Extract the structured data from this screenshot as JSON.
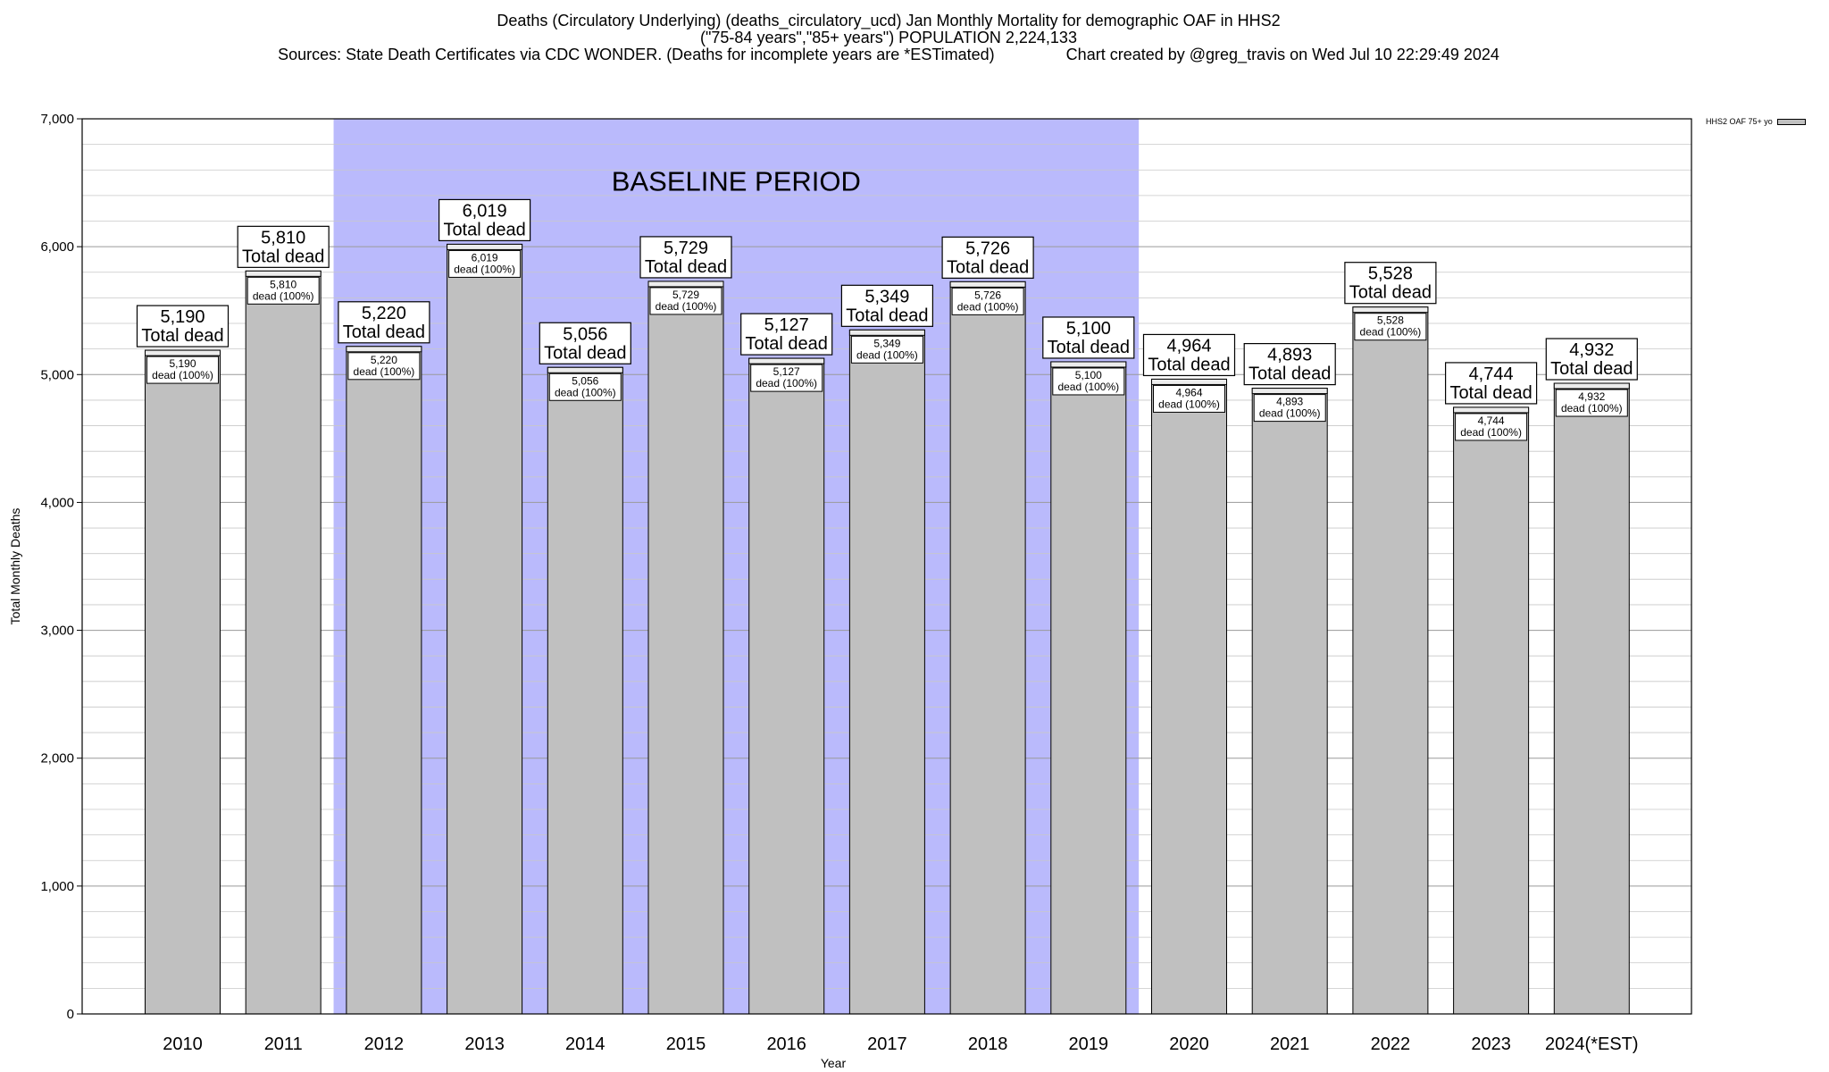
{
  "title_lines": [
    "Deaths (Circulatory Underlying) (deaths_circulatory_ucd) Jan Monthly Mortality for demographic OAF in HHS2",
    "(\"75-84 years\",\"85+ years\") POPULATION 2,224,133",
    "Sources: State Death Certificates via CDC WONDER. (Deaths for incomplete years are *ESTimated)                Chart created by @greg_travis on Wed Jul 10 22:29:49 2024"
  ],
  "chart_data": {
    "type": "bar",
    "categories": [
      "2010",
      "2011",
      "2012",
      "2013",
      "2014",
      "2015",
      "2016",
      "2017",
      "2018",
      "2019",
      "2020",
      "2021",
      "2022",
      "2023",
      "2024(*EST)"
    ],
    "series": [
      {
        "name": "HHS2 OAF 75+ yo",
        "values": [
          5190,
          5810,
          5220,
          6019,
          5056,
          5729,
          5127,
          5349,
          5726,
          5100,
          4964,
          4893,
          5528,
          4744,
          4932
        ]
      }
    ],
    "value_labels": [
      "5,190",
      "5,810",
      "5,220",
      "6,019",
      "5,056",
      "5,729",
      "5,127",
      "5,349",
      "5,726",
      "5,100",
      "4,964",
      "4,893",
      "5,528",
      "4,744",
      "4,932"
    ],
    "outer_label_suffix": "Total dead",
    "inner_label_suffix": "dead (100%)",
    "xlabel": "Year",
    "ylabel": "Total Monthly Deaths",
    "ylim": [
      0,
      7000
    ],
    "yticks": [
      0,
      1000,
      2000,
      3000,
      4000,
      5000,
      6000,
      7000
    ],
    "ytick_labels": [
      "0",
      "1,000",
      "2,000",
      "3,000",
      "4,000",
      "5,000",
      "6,000",
      "7,000"
    ],
    "minor_grid_step": 200,
    "grid": true,
    "legend_position": "top-right",
    "baseline": {
      "label": "BASELINE PERIOD",
      "start": "2012",
      "end": "2019"
    },
    "colors": {
      "bar": "#c0c0c0",
      "baseline": "#babafc",
      "grid": "#c8c8c8"
    }
  }
}
